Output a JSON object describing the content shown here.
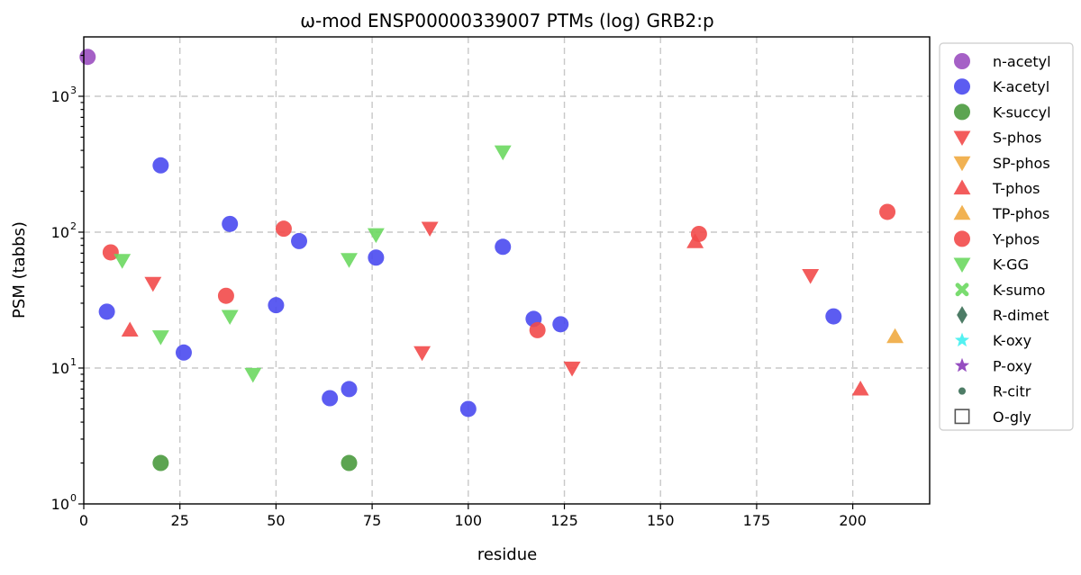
{
  "chart_data": {
    "type": "scatter",
    "title": "ω-mod ENSP00000339007 PTMs (log) GRB2:p",
    "xlabel": "residue",
    "ylabel": "PSM (tabbs)",
    "xlim": [
      0,
      220
    ],
    "ylim": [
      1,
      2700
    ],
    "yscale": "log",
    "grid": true,
    "legend_position": "outside-right",
    "x_ticks": [
      0,
      25,
      50,
      75,
      100,
      125,
      150,
      175,
      200
    ],
    "x_tick_labels": [
      "0",
      "25",
      "50",
      "75",
      "100",
      "125",
      "150",
      "175",
      "200"
    ],
    "y_ticks": [
      1,
      10,
      100,
      1000
    ],
    "y_tick_labels": [
      {
        "base": "10",
        "exp": "0"
      },
      {
        "base": "10",
        "exp": "1"
      },
      {
        "base": "10",
        "exp": "2"
      },
      {
        "base": "10",
        "exp": "3"
      }
    ],
    "series": [
      {
        "name": "n-acetyl",
        "marker": "circle",
        "color": "#9b4fc0",
        "points": [
          [
            1,
            1950
          ]
        ]
      },
      {
        "name": "K-acetyl",
        "marker": "circle",
        "color": "#4a4af0",
        "points": [
          [
            6,
            26
          ],
          [
            20,
            310
          ],
          [
            26,
            13
          ],
          [
            38,
            115
          ],
          [
            50,
            29
          ],
          [
            56,
            86
          ],
          [
            64,
            6
          ],
          [
            69,
            7
          ],
          [
            76,
            65
          ],
          [
            100,
            5
          ],
          [
            109,
            78
          ],
          [
            117,
            23
          ],
          [
            124,
            21
          ],
          [
            195,
            24
          ]
        ]
      },
      {
        "name": "K-succyl",
        "marker": "circle",
        "color": "#4a9a3e",
        "points": [
          [
            20,
            2
          ],
          [
            69,
            2
          ]
        ]
      },
      {
        "name": "S-phos",
        "marker": "triangle-down",
        "color": "#f24a4a",
        "points": [
          [
            18,
            42
          ],
          [
            88,
            13
          ],
          [
            90,
            107
          ],
          [
            127,
            10
          ],
          [
            189,
            48
          ]
        ]
      },
      {
        "name": "SP-phos",
        "marker": "triangle-down",
        "color": "#f0aa40",
        "points": []
      },
      {
        "name": "T-phos",
        "marker": "triangle-up",
        "color": "#f24a4a",
        "points": [
          [
            12,
            19
          ],
          [
            159,
            85
          ],
          [
            202,
            7
          ]
        ]
      },
      {
        "name": "TP-phos",
        "marker": "triangle-up",
        "color": "#f0aa40",
        "points": [
          [
            211,
            17
          ]
        ]
      },
      {
        "name": "Y-phos",
        "marker": "circle",
        "color": "#f24a4a",
        "points": [
          [
            7,
            71
          ],
          [
            37,
            34
          ],
          [
            52,
            106
          ],
          [
            118,
            19
          ],
          [
            160,
            97
          ],
          [
            209,
            141
          ]
        ]
      },
      {
        "name": "K-GG",
        "marker": "triangle-down",
        "color": "#6cd860",
        "points": [
          [
            10,
            62
          ],
          [
            20,
            17
          ],
          [
            38,
            24
          ],
          [
            44,
            9
          ],
          [
            69,
            63
          ],
          [
            76,
            96
          ],
          [
            109,
            390
          ]
        ]
      },
      {
        "name": "K-sumo",
        "marker": "x",
        "color": "#6cd860",
        "points": []
      },
      {
        "name": "R-dimet",
        "marker": "diamond",
        "color": "#3a6e55",
        "points": []
      },
      {
        "name": "K-oxy",
        "marker": "star",
        "color": "#40f0f0",
        "points": []
      },
      {
        "name": "P-oxy",
        "marker": "star",
        "color": "#8a3ab9",
        "points": []
      },
      {
        "name": "R-citr",
        "marker": "small-circle",
        "color": "#3a6e55",
        "points": []
      },
      {
        "name": "O-gly",
        "marker": "square-open",
        "color": "#555555",
        "points": []
      }
    ]
  }
}
